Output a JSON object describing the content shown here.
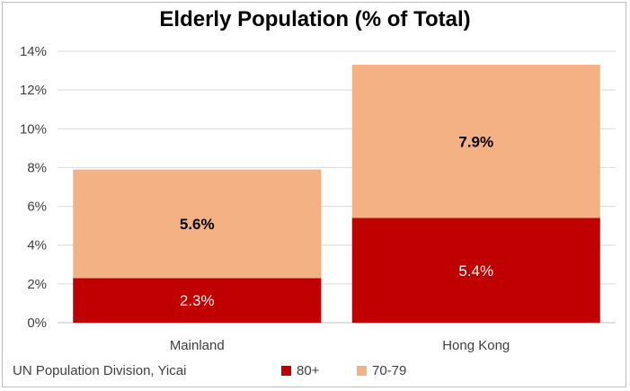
{
  "chart_data": {
    "type": "bar",
    "stacked": true,
    "title": "Elderly Population (% of Total)",
    "categories": [
      "Mainland",
      "Hong Kong"
    ],
    "series": [
      {
        "name": "80+",
        "values": [
          2.3,
          5.4
        ],
        "labels": [
          "2.3%",
          "5.4%"
        ],
        "color": "#c00000",
        "label_color": "#ffffff"
      },
      {
        "name": "70-79",
        "values": [
          5.6,
          7.9
        ],
        "labels": [
          "5.6%",
          "7.9%"
        ],
        "color": "#f4b183",
        "label_color": "#000000"
      }
    ],
    "ylim": [
      0,
      14
    ],
    "yticks": [
      "0%",
      "2%",
      "4%",
      "6%",
      "8%",
      "10%",
      "12%",
      "14%"
    ],
    "ytick_values": [
      0,
      2,
      4,
      6,
      8,
      10,
      12,
      14
    ],
    "grid": true,
    "legend_position": "bottom",
    "source": "UN Population Division, Yicai"
  }
}
